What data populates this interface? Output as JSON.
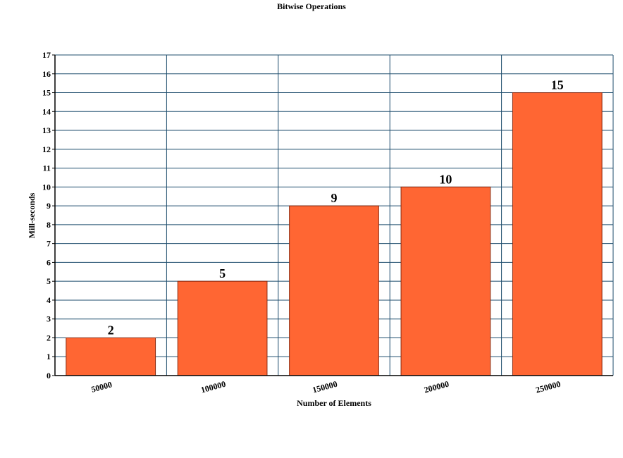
{
  "chart_data": {
    "type": "bar",
    "title": "Bitwise Operations",
    "x_label": "Number of Elements",
    "y_label": "Mill-seconds",
    "categories": [
      "50000",
      "100000",
      "150000",
      "200000",
      "250000"
    ],
    "values": [
      2,
      5,
      9,
      10,
      15
    ],
    "color": "#ff6633",
    "ylim": [
      0,
      17
    ],
    "yticks": [
      0,
      1,
      2,
      3,
      4,
      5,
      6,
      7,
      8,
      9,
      10,
      11,
      12,
      13,
      14,
      15,
      16,
      17
    ],
    "grid": true
  }
}
